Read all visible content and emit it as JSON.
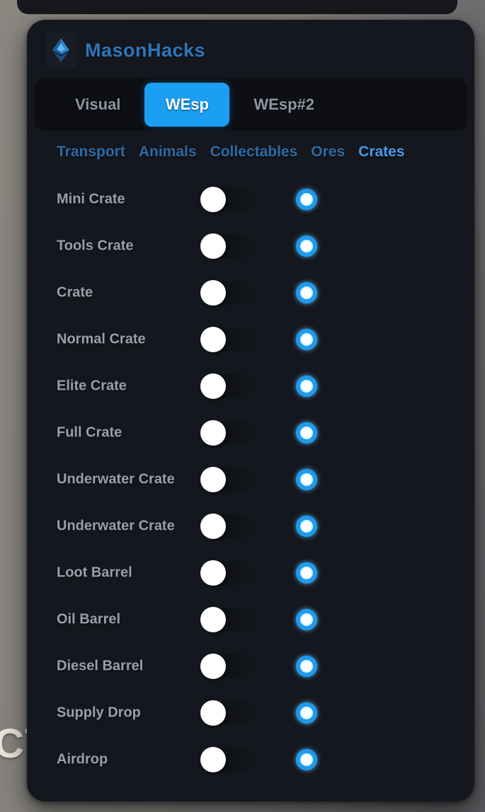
{
  "app": {
    "title": "MasonHacks",
    "logo": "gem-icon"
  },
  "background": {
    "partial_text": "CT"
  },
  "tabs": [
    {
      "label": "Visual",
      "active": false
    },
    {
      "label": "WEsp",
      "active": true
    },
    {
      "label": "WEsp#2",
      "active": false
    }
  ],
  "subtabs": [
    {
      "label": "Transport",
      "active": false
    },
    {
      "label": "Animals",
      "active": false
    },
    {
      "label": "Collectables",
      "active": false
    },
    {
      "label": "Ores",
      "active": false
    },
    {
      "label": "Crates",
      "active": true
    }
  ],
  "rows": [
    {
      "label": "Mini Crate",
      "toggle": "off",
      "color": "#1e9bef"
    },
    {
      "label": "Tools Crate",
      "toggle": "off",
      "color": "#1e9bef"
    },
    {
      "label": "Crate",
      "toggle": "off",
      "color": "#1e9bef"
    },
    {
      "label": "Normal Crate",
      "toggle": "off",
      "color": "#1e9bef"
    },
    {
      "label": "Elite Crate",
      "toggle": "off",
      "color": "#1e9bef"
    },
    {
      "label": "Full Crate",
      "toggle": "off",
      "color": "#1e9bef"
    },
    {
      "label": "Underwater Crate",
      "toggle": "off",
      "color": "#1e9bef"
    },
    {
      "label": "Underwater Crate",
      "toggle": "off",
      "color": "#1e9bef"
    },
    {
      "label": "Loot Barrel",
      "toggle": "off",
      "color": "#1e9bef"
    },
    {
      "label": "Oil Barrel",
      "toggle": "off",
      "color": "#1e9bef"
    },
    {
      "label": "Diesel Barrel",
      "toggle": "off",
      "color": "#1e9bef"
    },
    {
      "label": "Supply Drop",
      "toggle": "off",
      "color": "#1e9bef"
    },
    {
      "label": "Airdrop",
      "toggle": "off",
      "color": "#1e9bef"
    }
  ],
  "colors": {
    "panel_bg": "#15171e",
    "tabbar_bg": "#0d0f15",
    "accent_blue": "#1b9ff2",
    "title_blue": "#2e76ba",
    "subtab_inactive": "#2d6ba6",
    "subtab_active": "#459aec",
    "row_label": "#99a0ad",
    "dot_ring": "#1e9bef"
  }
}
